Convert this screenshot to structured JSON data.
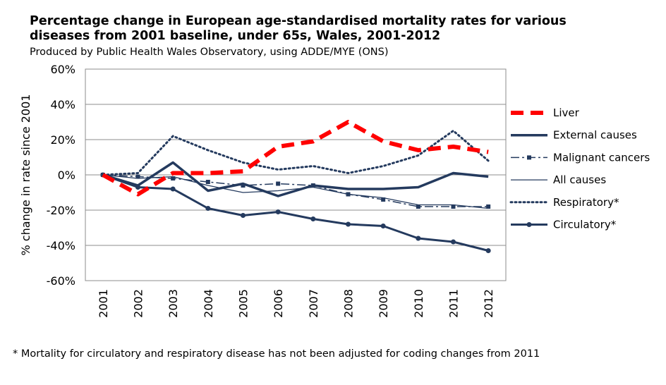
{
  "header": {
    "title_line1": "Percentage change in European age-standardised mortality rates for various",
    "title_line2": "diseases from 2001 baseline, under 65s, Wales, 2001-2012",
    "subtitle": "Produced by Public Health Wales Observatory, using ADDE/MYE (ONS)"
  },
  "footnote": "* Mortality for circulatory and respiratory disease has not been adjusted for coding changes from 2011",
  "chart_data": {
    "type": "line",
    "title": "Percentage change in European age-standardised mortality rates for various diseases from 2001 baseline, under 65s, Wales, 2001-2012",
    "ylabel": "% change in rate since 2001",
    "xlabel": "",
    "ylim": [
      -60,
      60
    ],
    "yticks": [
      60,
      40,
      20,
      0,
      -20,
      -40,
      -60
    ],
    "ytick_labels": [
      "60%",
      "40%",
      "20%",
      "0%",
      "-20%",
      "-40%",
      "-60%"
    ],
    "grid": "horizontal",
    "legend_position": "right",
    "categories": [
      "2001",
      "2002",
      "2003",
      "2004",
      "2005",
      "2006",
      "2007",
      "2008",
      "2009",
      "2010",
      "2011",
      "2012"
    ],
    "series": [
      {
        "name": "Liver",
        "color": "#ff0000",
        "style": "dashed-thick",
        "values": [
          0,
          -11,
          1,
          1,
          2,
          16,
          19,
          30,
          19,
          14,
          16,
          13
        ]
      },
      {
        "name": "External causes",
        "color": "#243a5e",
        "style": "solid-thick",
        "values": [
          0,
          -6,
          7,
          -9,
          -5,
          -12,
          -6,
          -8,
          -8,
          -7,
          1,
          -1
        ]
      },
      {
        "name": "Malignant cancers",
        "color": "#243a5e",
        "style": "dashdot-square",
        "values": [
          0,
          -1,
          -2,
          -4,
          -6,
          -5,
          -6,
          -11,
          -14,
          -18,
          -18,
          -18
        ]
      },
      {
        "name": "All causes",
        "color": "#243a5e",
        "style": "thin",
        "values": [
          0,
          -2,
          -1,
          -6,
          -10,
          -9,
          -7,
          -11,
          -13,
          -17,
          -17,
          -19
        ]
      },
      {
        "name": "Respiratory*",
        "color": "#243a5e",
        "style": "dotted",
        "values": [
          0,
          1,
          22,
          14,
          7,
          3,
          5,
          1,
          5,
          11,
          25,
          8
        ]
      },
      {
        "name": "Circulatory*",
        "color": "#243a5e",
        "style": "solid-dots",
        "values": [
          0,
          -7,
          -8,
          -19,
          -23,
          -21,
          -25,
          -28,
          -29,
          -36,
          -38,
          -43
        ]
      }
    ]
  }
}
